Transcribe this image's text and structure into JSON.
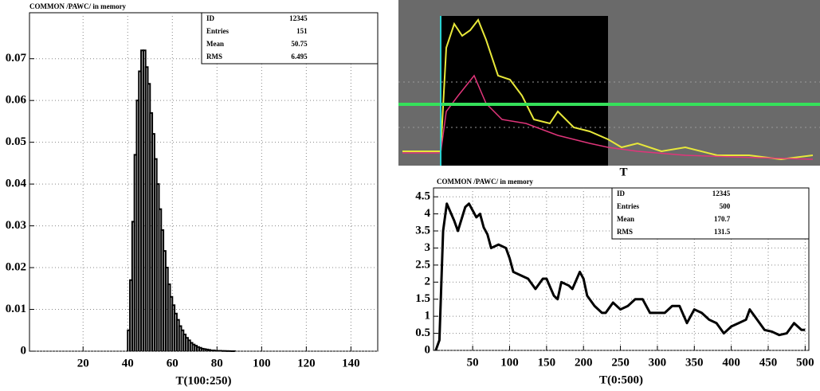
{
  "chart_data": [
    {
      "type": "histogram",
      "title": "COMMON /PAWC/ in memory",
      "xlabel": "T(100:250)",
      "bins": [
        40,
        41,
        42,
        43,
        44,
        45,
        46,
        47,
        48,
        49,
        50,
        51,
        52,
        53,
        54,
        55,
        56,
        57,
        58,
        59,
        60,
        61,
        62,
        63,
        64,
        65,
        66,
        67,
        68,
        69,
        70,
        71,
        72,
        73,
        74,
        75,
        76,
        77,
        78,
        79,
        80,
        81,
        82,
        83,
        84,
        85,
        86,
        87,
        88
      ],
      "values": [
        0.005,
        0.017,
        0.031,
        0.047,
        0.06,
        0.067,
        0.072,
        0.072,
        0.068,
        0.064,
        0.057,
        0.052,
        0.046,
        0.04,
        0.034,
        0.029,
        0.024,
        0.02,
        0.016,
        0.013,
        0.011,
        0.009,
        0.0075,
        0.006,
        0.005,
        0.004,
        0.0032,
        0.0026,
        0.002,
        0.0016,
        0.0013,
        0.001,
        0.0008,
        0.0006,
        0.0005,
        0.0004,
        0.0003,
        0.0002,
        0.0002,
        0.0001,
        0.0001,
        0.0001,
        5e-05,
        5e-05,
        3e-05,
        2e-05,
        1e-05,
        1e-05
      ],
      "color": "#000000",
      "xlim": [
        -4,
        152
      ],
      "xticks": [
        20,
        40,
        60,
        80,
        100,
        120,
        140
      ],
      "ylim": [
        0,
        0.081
      ],
      "yticks": [
        0,
        0.01,
        0.02,
        0.03,
        0.04,
        0.05,
        0.06,
        0.07
      ],
      "grid": true,
      "stats": {
        "labels": [
          "ID",
          "Entries",
          "Mean",
          "RMS"
        ],
        "values": [
          12345,
          151,
          50.75,
          6.495
        ]
      }
    },
    {
      "type": "line",
      "title": "T",
      "subtitle": "COMMON /PAWC/ in memory",
      "xlabel": "T(0:500)",
      "x": [
        0,
        5,
        10,
        15,
        25,
        30,
        40,
        45,
        55,
        60,
        65,
        70,
        75,
        85,
        95,
        100,
        105,
        115,
        125,
        135,
        145,
        150,
        160,
        165,
        170,
        180,
        185,
        195,
        200,
        205,
        215,
        225,
        230,
        240,
        250,
        260,
        270,
        280,
        290,
        300,
        310,
        320,
        330,
        340,
        350,
        360,
        370,
        380,
        390,
        400,
        410,
        420,
        425,
        435,
        445,
        455,
        465,
        475,
        485,
        495,
        500
      ],
      "values": [
        0,
        0.3,
        3.5,
        4.3,
        3.8,
        3.5,
        4.2,
        4.3,
        3.9,
        4.0,
        3.6,
        3.4,
        3.0,
        3.1,
        3.0,
        2.7,
        2.3,
        2.2,
        2.1,
        1.8,
        2.1,
        2.1,
        1.6,
        1.5,
        2.0,
        1.9,
        1.8,
        2.3,
        2.1,
        1.6,
        1.3,
        1.1,
        1.1,
        1.4,
        1.2,
        1.3,
        1.5,
        1.5,
        1.1,
        1.1,
        1.1,
        1.3,
        1.3,
        0.8,
        1.2,
        1.1,
        0.9,
        0.8,
        0.5,
        0.7,
        0.8,
        0.9,
        1.2,
        0.9,
        0.6,
        0.55,
        0.45,
        0.5,
        0.8,
        0.6,
        0.6
      ],
      "color": "#000000",
      "xlim": [
        -3,
        505
      ],
      "xticks": [
        50,
        100,
        150,
        200,
        250,
        300,
        350,
        400,
        450,
        500
      ],
      "ylim": [
        0,
        4.76
      ],
      "yticks": [
        0,
        0.5,
        1,
        1.5,
        2,
        2.5,
        3,
        3.5,
        4,
        4.5
      ],
      "grid": true,
      "stats": {
        "labels": [
          "ID",
          "Entries",
          "Mean",
          "RMS"
        ],
        "values": [
          12345,
          500,
          170.7,
          131.5
        ]
      }
    }
  ]
}
